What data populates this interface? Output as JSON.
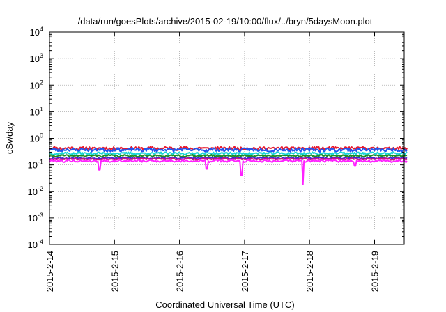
{
  "chart_data": {
    "type": "line",
    "title": "/data/run/goesPlots/archive/2015-02-19/10:00/flux/../bryn/5daysMoon.plot",
    "xlabel": "Coordinated Universal Time (UTC)",
    "ylabel": "cSv/day",
    "yscale": "log",
    "ylim": [
      0.0001,
      10000
    ],
    "xlim": [
      "2015-02-14",
      "2015-02-19 12:00"
    ],
    "grid": true,
    "legend": "none",
    "x_ticks": [
      "2015-2-14",
      "2015-2-15",
      "2015-2-16",
      "2015-2-17",
      "2015-2-18",
      "2015-2-19"
    ],
    "y_ticks": [
      {
        "base": "10",
        "exp": "-4",
        "value": 0.0001
      },
      {
        "base": "10",
        "exp": "-3",
        "value": 0.001
      },
      {
        "base": "10",
        "exp": "-2",
        "value": 0.01
      },
      {
        "base": "10",
        "exp": "-1",
        "value": 0.1
      },
      {
        "base": "10",
        "exp": "0",
        "value": 1
      },
      {
        "base": "10",
        "exp": "1",
        "value": 10
      },
      {
        "base": "10",
        "exp": "2",
        "value": 100
      },
      {
        "base": "10",
        "exp": "3",
        "value": 1000
      },
      {
        "base": "10",
        "exp": "4",
        "value": 10000
      }
    ],
    "series": [
      {
        "color": "#e8182c",
        "level": 0.42,
        "spread": 0.13,
        "seed": 11,
        "dips": []
      },
      {
        "color": "#2255ee",
        "level": 0.37,
        "spread": 0.14,
        "seed": 23,
        "dips": []
      },
      {
        "color": "#18d6d6",
        "level": 0.27,
        "spread": 0.1,
        "seed": 37,
        "dips": []
      },
      {
        "color": "#228b22",
        "level": 0.22,
        "spread": 0.08,
        "seed": 41,
        "dips": []
      },
      {
        "color": "#3a2ad8",
        "level": 0.18,
        "spread": 0.07,
        "seed": 53,
        "dips": []
      },
      {
        "color": "#cc1878",
        "level": 0.165,
        "spread": 0.06,
        "seed": 67,
        "dips": []
      },
      {
        "color": "#ff22ff",
        "level": 0.14,
        "spread": 0.09,
        "seed": 79,
        "dips": [
          {
            "x": 0.77,
            "value": 0.065
          },
          {
            "x": 2.42,
            "value": 0.07
          },
          {
            "x": 2.95,
            "value": 0.04
          },
          {
            "x": 3.9,
            "value": 0.018
          },
          {
            "x": 4.7,
            "value": 0.09
          }
        ]
      }
    ]
  }
}
